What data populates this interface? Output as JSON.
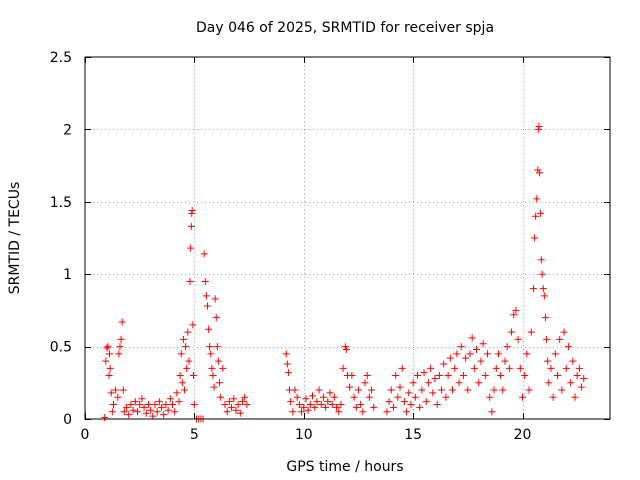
{
  "chart_data": {
    "type": "scatter",
    "title": "Day 046 of 2025, SRMTID for receiver spja",
    "xlabel": "GPS time / hours",
    "ylabel": "SRMTID / TECUs",
    "xlim": [
      0,
      24
    ],
    "ylim": [
      0,
      2.5
    ],
    "xticks": [
      0,
      5,
      10,
      15,
      20
    ],
    "yticks": [
      0,
      0.5,
      1,
      1.5,
      2,
      2.5
    ],
    "xtick_labels": [
      "0",
      "5",
      "10",
      "15",
      "20"
    ],
    "ytick_labels": [
      "0",
      "0.5",
      "1",
      "1.5",
      "2",
      "2.5"
    ],
    "grid": true,
    "marker": "+",
    "series_color": "#ff0000",
    "series": [
      {
        "name": "SRMTID",
        "points": [
          [
            0.9,
            0.01
          ],
          [
            0.95,
            0.4
          ],
          [
            1.0,
            0.49
          ],
          [
            1.05,
            0.5
          ],
          [
            1.1,
            0.3
          ],
          [
            1.12,
            0.45
          ],
          [
            1.15,
            0.35
          ],
          [
            1.2,
            0.18
          ],
          [
            1.25,
            0.05
          ],
          [
            1.3,
            0.1
          ],
          [
            1.4,
            0.2
          ],
          [
            1.5,
            0.15
          ],
          [
            1.55,
            0.45
          ],
          [
            1.6,
            0.5
          ],
          [
            1.65,
            0.55
          ],
          [
            1.7,
            0.67
          ],
          [
            1.75,
            0.2
          ],
          [
            1.8,
            0.05
          ],
          [
            1.9,
            0.08
          ],
          [
            2.0,
            0.03
          ],
          [
            2.1,
            0.1
          ],
          [
            2.2,
            0.06
          ],
          [
            2.3,
            0.12
          ],
          [
            2.4,
            0.05
          ],
          [
            2.5,
            0.1
          ],
          [
            2.6,
            0.14
          ],
          [
            2.7,
            0.08
          ],
          [
            2.8,
            0.04
          ],
          [
            2.9,
            0.1
          ],
          [
            3.0,
            0.06
          ],
          [
            3.1,
            0.02
          ],
          [
            3.2,
            0.1
          ],
          [
            3.3,
            0.05
          ],
          [
            3.4,
            0.12
          ],
          [
            3.5,
            0.08
          ],
          [
            3.6,
            0.03
          ],
          [
            3.7,
            0.1
          ],
          [
            3.8,
            0.06
          ],
          [
            3.9,
            0.14
          ],
          [
            4.0,
            0.1
          ],
          [
            4.1,
            0.05
          ],
          [
            4.2,
            0.18
          ],
          [
            4.3,
            0.12
          ],
          [
            4.35,
            0.3
          ],
          [
            4.4,
            0.45
          ],
          [
            4.45,
            0.25
          ],
          [
            4.5,
            0.55
          ],
          [
            4.55,
            0.2
          ],
          [
            4.6,
            0.5
          ],
          [
            4.65,
            0.35
          ],
          [
            4.7,
            0.6
          ],
          [
            4.75,
            0.4
          ],
          [
            4.8,
            0.95
          ],
          [
            4.83,
            1.18
          ],
          [
            4.86,
            1.33
          ],
          [
            4.88,
            1.42
          ],
          [
            4.9,
            1.44
          ],
          [
            4.93,
            0.65
          ],
          [
            4.96,
            0.3
          ],
          [
            5.0,
            0.1
          ],
          [
            5.1,
            0.0
          ],
          [
            5.2,
            0.0
          ],
          [
            5.3,
            0.0
          ],
          [
            5.4,
            0.0
          ],
          [
            5.45,
            1.14
          ],
          [
            5.5,
            0.95
          ],
          [
            5.55,
            0.85
          ],
          [
            5.6,
            0.78
          ],
          [
            5.65,
            0.62
          ],
          [
            5.7,
            0.5
          ],
          [
            5.75,
            0.45
          ],
          [
            5.8,
            0.35
          ],
          [
            5.85,
            0.3
          ],
          [
            5.9,
            0.22
          ],
          [
            5.95,
            0.83
          ],
          [
            6.0,
            0.7
          ],
          [
            6.05,
            0.5
          ],
          [
            6.1,
            0.4
          ],
          [
            6.15,
            0.25
          ],
          [
            6.2,
            0.15
          ],
          [
            6.3,
            0.35
          ],
          [
            6.4,
            0.1
          ],
          [
            6.5,
            0.05
          ],
          [
            6.6,
            0.12
          ],
          [
            6.7,
            0.08
          ],
          [
            6.8,
            0.14
          ],
          [
            6.9,
            0.06
          ],
          [
            7.0,
            0.1
          ],
          [
            7.1,
            0.04
          ],
          [
            7.2,
            0.12
          ],
          [
            7.3,
            0.15
          ],
          [
            7.4,
            0.1
          ],
          [
            9.2,
            0.45
          ],
          [
            9.25,
            0.38
          ],
          [
            9.3,
            0.32
          ],
          [
            9.35,
            0.2
          ],
          [
            9.4,
            0.12
          ],
          [
            9.5,
            0.05
          ],
          [
            9.6,
            0.2
          ],
          [
            9.7,
            0.15
          ],
          [
            9.8,
            0.1
          ],
          [
            9.9,
            0.05
          ],
          [
            10.0,
            0.08
          ],
          [
            10.1,
            0.14
          ],
          [
            10.2,
            0.06
          ],
          [
            10.3,
            0.1
          ],
          [
            10.4,
            0.16
          ],
          [
            10.5,
            0.08
          ],
          [
            10.6,
            0.12
          ],
          [
            10.7,
            0.2
          ],
          [
            10.8,
            0.1
          ],
          [
            10.9,
            0.15
          ],
          [
            11.0,
            0.08
          ],
          [
            11.1,
            0.12
          ],
          [
            11.2,
            0.18
          ],
          [
            11.3,
            0.1
          ],
          [
            11.4,
            0.15
          ],
          [
            11.5,
            0.08
          ],
          [
            11.6,
            0.05
          ],
          [
            11.7,
            0.1
          ],
          [
            11.8,
            0.35
          ],
          [
            11.9,
            0.5
          ],
          [
            11.95,
            0.48
          ],
          [
            12.0,
            0.3
          ],
          [
            12.1,
            0.22
          ],
          [
            12.2,
            0.3
          ],
          [
            12.3,
            0.15
          ],
          [
            12.4,
            0.08
          ],
          [
            12.5,
            0.2
          ],
          [
            12.6,
            0.1
          ],
          [
            12.7,
            0.05
          ],
          [
            12.8,
            0.25
          ],
          [
            12.9,
            0.3
          ],
          [
            13.0,
            0.15
          ],
          [
            13.1,
            0.2
          ],
          [
            13.2,
            0.08
          ],
          [
            13.8,
            0.05
          ],
          [
            13.9,
            0.12
          ],
          [
            14.0,
            0.2
          ],
          [
            14.1,
            0.08
          ],
          [
            14.2,
            0.3
          ],
          [
            14.3,
            0.15
          ],
          [
            14.4,
            0.22
          ],
          [
            14.5,
            0.35
          ],
          [
            14.6,
            0.12
          ],
          [
            14.7,
            0.05
          ],
          [
            14.8,
            0.18
          ],
          [
            14.9,
            0.1
          ],
          [
            15.0,
            0.25
          ],
          [
            15.1,
            0.15
          ],
          [
            15.2,
            0.3
          ],
          [
            15.3,
            0.08
          ],
          [
            15.4,
            0.2
          ],
          [
            15.5,
            0.32
          ],
          [
            15.6,
            0.12
          ],
          [
            15.7,
            0.25
          ],
          [
            15.8,
            0.35
          ],
          [
            15.9,
            0.18
          ],
          [
            16.0,
            0.28
          ],
          [
            16.1,
            0.1
          ],
          [
            16.2,
            0.3
          ],
          [
            16.3,
            0.2
          ],
          [
            16.4,
            0.38
          ],
          [
            16.5,
            0.15
          ],
          [
            16.6,
            0.3
          ],
          [
            16.7,
            0.42
          ],
          [
            16.8,
            0.2
          ],
          [
            16.9,
            0.35
          ],
          [
            17.0,
            0.45
          ],
          [
            17.1,
            0.25
          ],
          [
            17.2,
            0.5
          ],
          [
            17.3,
            0.3
          ],
          [
            17.4,
            0.42
          ],
          [
            17.5,
            0.2
          ],
          [
            17.6,
            0.45
          ],
          [
            17.7,
            0.56
          ],
          [
            17.8,
            0.35
          ],
          [
            17.9,
            0.48
          ],
          [
            18.0,
            0.25
          ],
          [
            18.1,
            0.4
          ],
          [
            18.2,
            0.52
          ],
          [
            18.3,
            0.3
          ],
          [
            18.4,
            0.45
          ],
          [
            18.5,
            0.15
          ],
          [
            18.6,
            0.05
          ],
          [
            18.7,
            0.2
          ],
          [
            18.8,
            0.35
          ],
          [
            18.9,
            0.45
          ],
          [
            19.0,
            0.3
          ],
          [
            19.1,
            0.2
          ],
          [
            19.2,
            0.4
          ],
          [
            19.3,
            0.5
          ],
          [
            19.4,
            0.35
          ],
          [
            19.5,
            0.6
          ],
          [
            19.6,
            0.72
          ],
          [
            19.7,
            0.75
          ],
          [
            19.8,
            0.55
          ],
          [
            19.9,
            0.35
          ],
          [
            20.0,
            0.15
          ],
          [
            20.1,
            0.3
          ],
          [
            20.2,
            0.45
          ],
          [
            20.3,
            0.2
          ],
          [
            20.4,
            0.6
          ],
          [
            20.5,
            0.9
          ],
          [
            20.55,
            1.25
          ],
          [
            20.6,
            1.4
          ],
          [
            20.65,
            1.52
          ],
          [
            20.7,
            1.72
          ],
          [
            20.72,
            2.0
          ],
          [
            20.75,
            2.02
          ],
          [
            20.78,
            1.7
          ],
          [
            20.82,
            1.42
          ],
          [
            20.86,
            1.1
          ],
          [
            20.9,
            1.0
          ],
          [
            20.95,
            0.9
          ],
          [
            21.0,
            0.85
          ],
          [
            21.05,
            0.7
          ],
          [
            21.1,
            0.55
          ],
          [
            21.15,
            0.4
          ],
          [
            21.2,
            0.25
          ],
          [
            21.3,
            0.35
          ],
          [
            21.4,
            0.15
          ],
          [
            21.5,
            0.45
          ],
          [
            21.6,
            0.3
          ],
          [
            21.7,
            0.55
          ],
          [
            21.8,
            0.2
          ],
          [
            21.9,
            0.6
          ],
          [
            22.0,
            0.35
          ],
          [
            22.1,
            0.5
          ],
          [
            22.2,
            0.25
          ],
          [
            22.3,
            0.4
          ],
          [
            22.4,
            0.15
          ],
          [
            22.5,
            0.3
          ],
          [
            22.6,
            0.35
          ],
          [
            22.7,
            0.22
          ],
          [
            22.8,
            0.28
          ]
        ]
      }
    ]
  }
}
